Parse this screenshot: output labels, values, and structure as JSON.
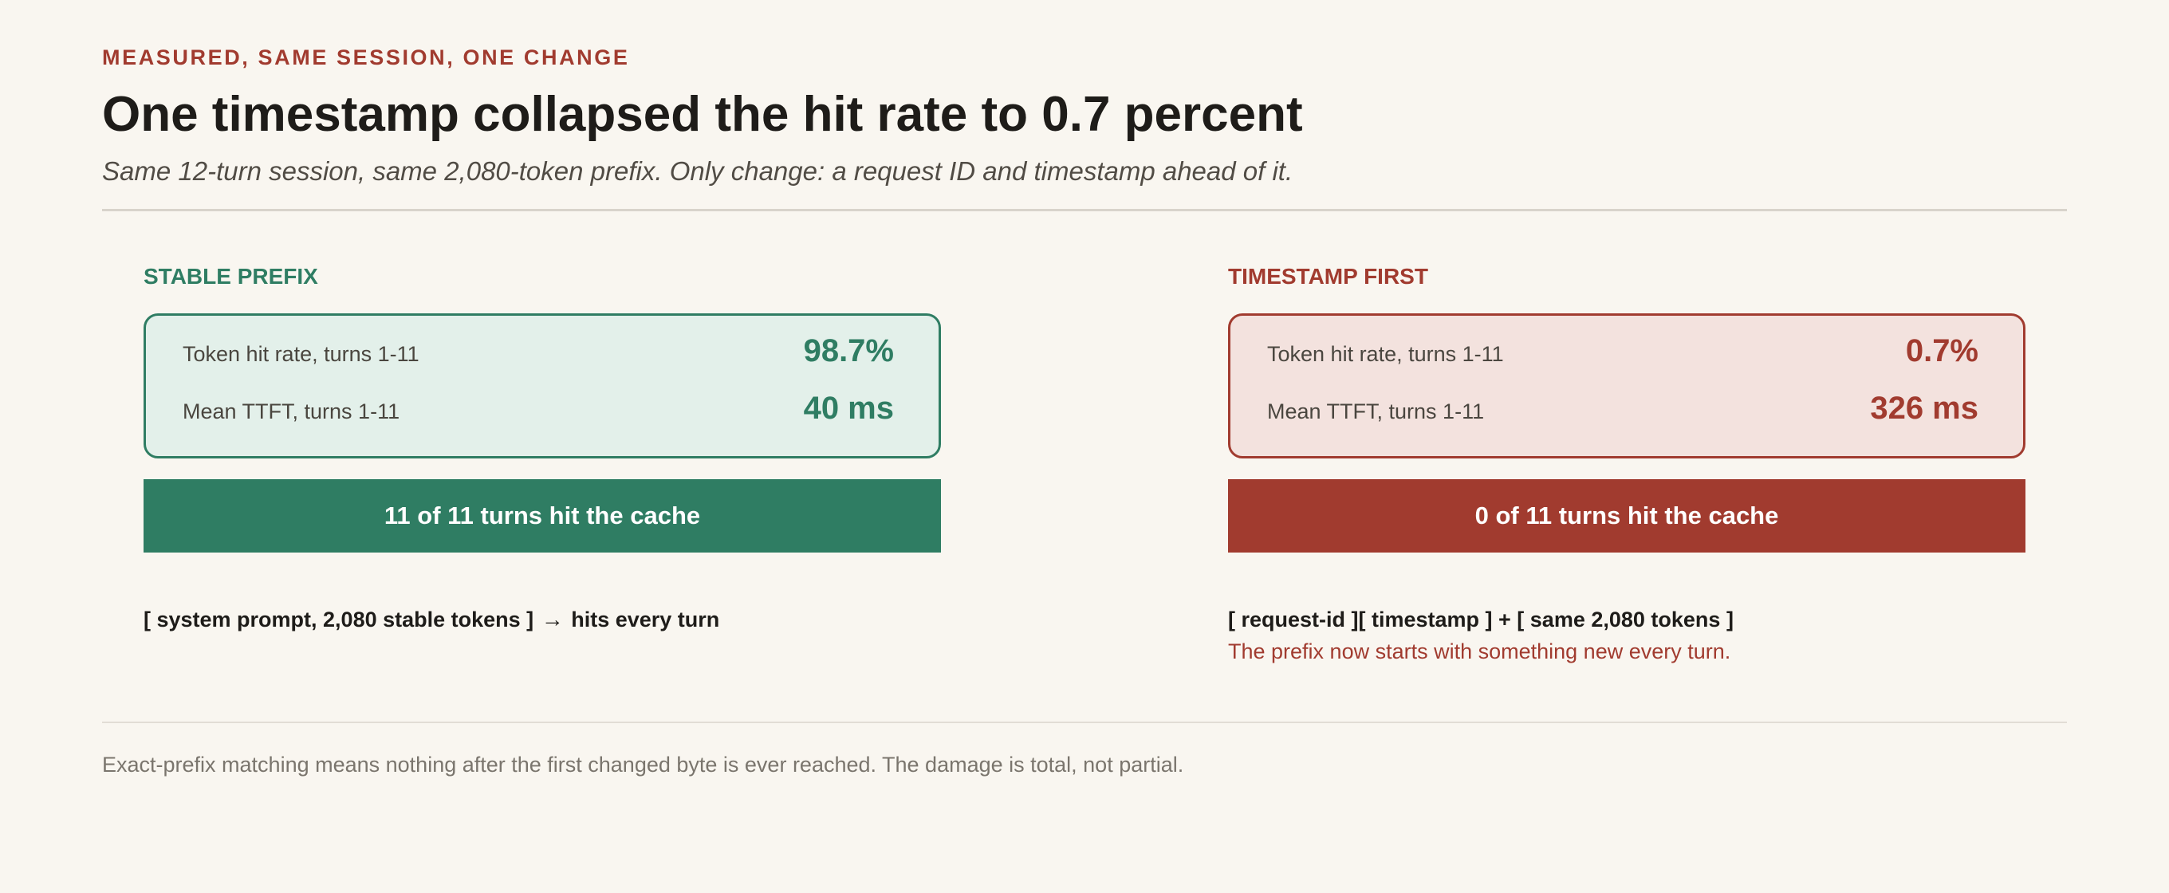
{
  "header": {
    "eyebrow": "MEASURED, SAME SESSION, ONE CHANGE",
    "title": "One timestamp collapsed the hit rate to 0.7 percent",
    "subtitle": "Same 12-turn session, same 2,080-token prefix. Only change: a request ID and timestamp ahead of it."
  },
  "stable": {
    "heading": "STABLE PREFIX",
    "accent": "#2f7d63",
    "metrics": [
      {
        "label": "Token hit rate, turns 1-11",
        "value": "98.7%"
      },
      {
        "label": "Mean TTFT, turns 1-11",
        "value": "40 ms"
      }
    ],
    "banner": "11 of 11 turns hit the cache",
    "sequence_prefix": "[ system prompt, 2,080 stable tokens ]",
    "arrow": "→",
    "sequence_suffix": "hits every turn"
  },
  "timestamp": {
    "heading": "TIMESTAMP FIRST",
    "accent": "#a13b2f",
    "metrics": [
      {
        "label": "Token hit rate, turns 1-11",
        "value": "0.7%"
      },
      {
        "label": "Mean TTFT, turns 1-11",
        "value": "326 ms"
      }
    ],
    "banner": "0 of 11 turns hit the cache",
    "sequence": "[ request-id ][ timestamp ] + [ same 2,080 tokens ]",
    "note": "The prefix now starts with something new every turn."
  },
  "footer": {
    "note": "Exact-prefix matching means nothing after the first changed byte is ever reached. The damage is total, not partial."
  }
}
